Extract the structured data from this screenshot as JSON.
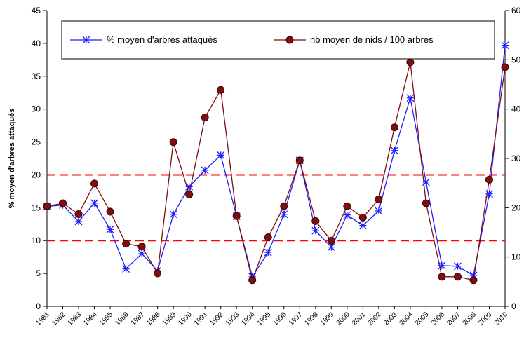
{
  "chart_data": {
    "type": "line",
    "y_label": "% moyen d'arbres attaqués",
    "categories": [
      "1981",
      "1982",
      "1983",
      "1984",
      "1985",
      "1986",
      "1987",
      "1988",
      "1989",
      "1990",
      "1991",
      "1992",
      "1993",
      "1994",
      "1995",
      "1996",
      "1997",
      "1998",
      "1999",
      "2000",
      "2001",
      "2002",
      "2003",
      "2004",
      "2005",
      "2006",
      "2007",
      "2008",
      "2009",
      "2010"
    ],
    "series": [
      {
        "name": "% moyen d'arbres attaqués",
        "color": "#1f1fff",
        "marker": "star",
        "values": [
          15.2,
          15.4,
          12.9,
          15.7,
          11.7,
          5.7,
          8.0,
          5.4,
          14.0,
          18.2,
          20.7,
          23.0,
          13.7,
          4.5,
          8.2,
          14.0,
          22.2,
          11.5,
          9.0,
          13.9,
          12.3,
          14.5,
          23.7,
          31.7,
          18.9,
          6.2,
          6.1,
          4.7,
          17.1,
          39.7
        ]
      },
      {
        "name": "nb moyen de nids / 100 arbres",
        "color": "#7f0f0f",
        "marker": "circle",
        "axis": "y2",
        "values": [
          20.3,
          20.9,
          18.7,
          24.9,
          19.2,
          12.7,
          12.1,
          6.7,
          33.3,
          22.7,
          38.3,
          43.9,
          18.3,
          5.3,
          14.0,
          20.3,
          29.6,
          17.3,
          13.3,
          20.3,
          18.0,
          21.7,
          36.3,
          49.5,
          20.9,
          6.0,
          6.0,
          5.3,
          25.7,
          48.5
        ]
      }
    ],
    "ylim": [
      0,
      45
    ],
    "yticks": [
      0,
      5,
      10,
      15,
      20,
      25,
      30,
      35,
      40,
      45
    ],
    "y2lim": [
      0,
      60
    ],
    "y2ticks": [
      0,
      10,
      20,
      30,
      40,
      50,
      60
    ],
    "hlines": [
      10,
      20
    ],
    "hline_color": "#ff0000",
    "legend": "top"
  }
}
